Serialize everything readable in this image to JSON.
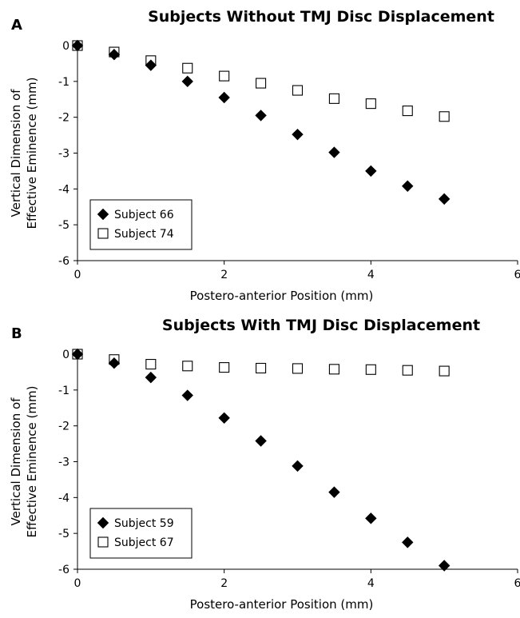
{
  "chart_data": [
    {
      "type": "scatter",
      "panel_label": "A",
      "title": "Subjects Without TMJ Disc Displacement",
      "xlabel": "Postero-anterior Position (mm)",
      "ylabel": [
        "Vertical Dimension of",
        "Effective Eminence (mm)"
      ],
      "xlim": [
        0,
        6
      ],
      "ylim": [
        -6,
        0
      ],
      "xticks": [
        "0",
        "2",
        "4",
        "6"
      ],
      "yticks": [
        "0",
        "-1",
        "-2",
        "-3",
        "-4",
        "-5",
        "-6"
      ],
      "legend_position": "bottom-left",
      "grid": false,
      "series": [
        {
          "name": "Subject 66",
          "marker": "filled-diamond",
          "x": [
            0,
            0.5,
            1,
            1.5,
            2,
            2.5,
            3,
            3.5,
            4,
            4.5,
            5
          ],
          "y": [
            0,
            -0.25,
            -0.55,
            -1.0,
            -1.45,
            -1.95,
            -2.48,
            -2.98,
            -3.5,
            -3.92,
            -4.28
          ]
        },
        {
          "name": "Subject 74",
          "marker": "open-square",
          "x": [
            0,
            0.5,
            1,
            1.5,
            2,
            2.5,
            3,
            3.5,
            4,
            4.5,
            5
          ],
          "y": [
            0,
            -0.18,
            -0.42,
            -0.63,
            -0.85,
            -1.05,
            -1.25,
            -1.48,
            -1.62,
            -1.82,
            -1.98
          ]
        }
      ]
    },
    {
      "type": "scatter",
      "panel_label": "B",
      "title": "Subjects With TMJ Disc Displacement",
      "xlabel": "Postero-anterior Position (mm)",
      "ylabel": [
        "Vertical Dimension of",
        "Effective Eminence (mm)"
      ],
      "xlim": [
        0,
        6
      ],
      "ylim": [
        -6,
        0
      ],
      "xticks": [
        "0",
        "2",
        "4",
        "6"
      ],
      "yticks": [
        "0",
        "-1",
        "-2",
        "-3",
        "-4",
        "-5",
        "-6"
      ],
      "legend_position": "bottom-left",
      "grid": false,
      "series": [
        {
          "name": "Subject 59",
          "marker": "filled-diamond",
          "x": [
            0,
            0.5,
            1,
            1.5,
            2,
            2.5,
            3,
            3.5,
            4,
            4.5,
            5
          ],
          "y": [
            0,
            -0.25,
            -0.65,
            -1.15,
            -1.78,
            -2.42,
            -3.12,
            -3.85,
            -4.58,
            -5.25,
            -5.9
          ]
        },
        {
          "name": "Subject 67",
          "marker": "open-square",
          "x": [
            0,
            0.5,
            1,
            1.5,
            2,
            2.5,
            3,
            3.5,
            4,
            4.5,
            5
          ],
          "y": [
            0,
            -0.15,
            -0.28,
            -0.33,
            -0.37,
            -0.39,
            -0.4,
            -0.42,
            -0.43,
            -0.45,
            -0.47
          ]
        }
      ]
    }
  ]
}
